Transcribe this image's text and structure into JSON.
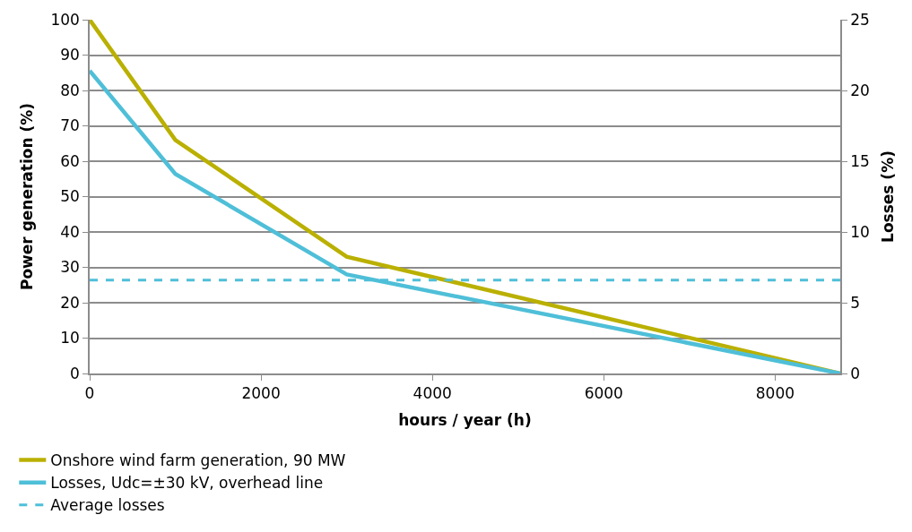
{
  "chart_data": {
    "type": "line",
    "xlabel": "hours / year (h)",
    "ylabel": "Power generation (%)",
    "y2label": "Losses (%)",
    "xlim": [
      0,
      8760
    ],
    "xticks": [
      0,
      2000,
      4000,
      6000,
      8000
    ],
    "ylim": [
      0,
      100
    ],
    "yticks": [
      0,
      10,
      20,
      30,
      40,
      50,
      60,
      70,
      80,
      90,
      100
    ],
    "y2lim": [
      0,
      25
    ],
    "y2ticks": [
      0,
      5,
      10,
      15,
      20,
      25
    ],
    "grid": "y",
    "legend": "bottom",
    "marker": "none",
    "line_style": "solid",
    "series": [
      {
        "name": "Onshore wind farm generation, 90 MW",
        "color": "#bab000",
        "x": [
          0,
          1000,
          3000,
          8760
        ],
        "values": [
          100,
          66,
          33,
          0
        ]
      },
      {
        "name": "Losses, Udc=±30 kV, overhead line",
        "color": "#4fbfd8",
        "axis": "y2",
        "x": [
          0,
          1000,
          3000,
          8760
        ],
        "values": [
          21.4,
          14.1,
          7.0,
          0
        ]
      }
    ],
    "ref_lines": [
      {
        "axis": "y2",
        "value": 6.6,
        "label": "Average losses",
        "color": "#4fbfd8",
        "line_style": "dashed"
      }
    ]
  }
}
